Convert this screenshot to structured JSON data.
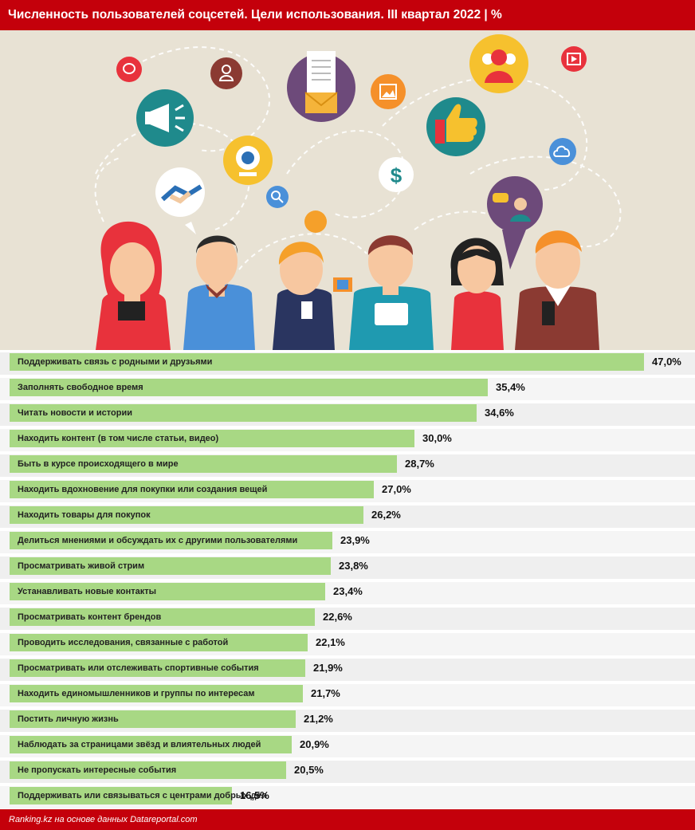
{
  "header": {
    "title": "Численность пользователей соцсетей. Цели использования. III квартал 2022 | %"
  },
  "footer": {
    "source": "Ranking.kz на основе данных Datareportal.com"
  },
  "colors": {
    "brand_red": "#c4000b",
    "bar_green": "#a8d884",
    "illustration_bg": "#e8e2d4"
  },
  "chart_data": {
    "type": "bar",
    "orientation": "horizontal",
    "title": "Численность пользователей соцсетей. Цели использования. III квартал 2022 | %",
    "unit": "%",
    "xlim": [
      0,
      47
    ],
    "categories": [
      "Поддерживать связь с родными и друзьями",
      "Заполнять свободное время",
      "Читать новости и истории",
      "Находить контент (в том числе статьи, видео)",
      "Быть в курсе происходящего в мире",
      "Находить вдохновение для покупки или создания вещей",
      "Находить товары для покупок",
      "Делиться мнениями и обсуждать их с другими пользователями",
      "Просматривать живой стрим",
      "Устанавливать новые контакты",
      "Просматривать контент брендов",
      "Проводить исследования, связанные с работой",
      "Просматривать или отслеживать спортивные события",
      "Находить единомышленников и группы по интересам",
      "Постить личную жизнь",
      "Наблюдать за страницами звёзд и влиятельных людей",
      "Не пропускать интересные события",
      "Поддерживать или связываться с центрами добрых дел"
    ],
    "values": [
      47.0,
      35.4,
      34.6,
      30.0,
      28.7,
      27.0,
      26.2,
      23.9,
      23.8,
      23.4,
      22.6,
      22.1,
      21.9,
      21.7,
      21.2,
      20.9,
      20.5,
      16.5
    ],
    "value_labels": [
      "47,0%",
      "35,4%",
      "34,6%",
      "30,0%",
      "28,7%",
      "27,0%",
      "26,2%",
      "23,9%",
      "23,8%",
      "23,4%",
      "22,6%",
      "22,1%",
      "21,9%",
      "21,7%",
      "21,2%",
      "20,9%",
      "20,5%",
      "16,5%"
    ]
  },
  "illustration": {
    "icons": [
      "chat-bubble-icon",
      "user-icon",
      "megaphone-icon",
      "document-mail-icon",
      "image-icon",
      "users-group-icon",
      "play-video-icon",
      "thumbs-up-icon",
      "webcam-icon",
      "dollar-icon",
      "cloud-icon",
      "search-icon",
      "handshake-icon",
      "chat-avatar-icon",
      "film-icon"
    ]
  }
}
